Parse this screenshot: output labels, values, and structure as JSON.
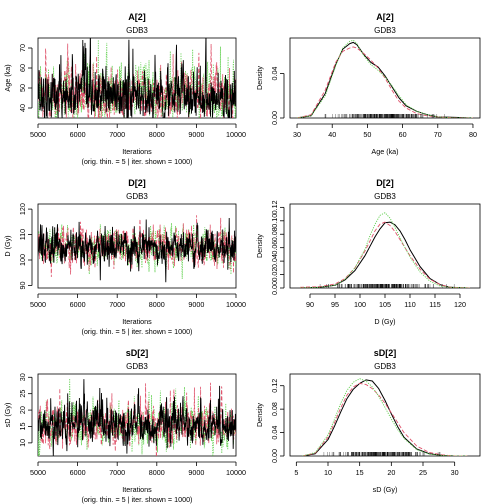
{
  "chart_data": [
    {
      "type": "line",
      "kind": "trace",
      "title": "A[2]",
      "subtitle": "GDB3",
      "ylabel": "Age (ka)",
      "xlabel": "Iterations",
      "xlabel2": "(orig. thin. = 5 | iter. shown = 1000)",
      "xlim": [
        5000,
        10000
      ],
      "ylim": [
        35,
        75
      ],
      "xticks": [
        5000,
        6000,
        7000,
        8000,
        9000,
        10000
      ],
      "yticks": [
        40,
        50,
        60,
        70
      ],
      "trace_params": {
        "mean": 46,
        "sd": 6,
        "skew": 0.6
      },
      "series_colors": [
        "#000000",
        "#df536b",
        "#61d04f"
      ]
    },
    {
      "type": "line",
      "kind": "density",
      "title": "A[2]",
      "subtitle": "GDB3",
      "ylabel": "Density",
      "xlabel": "Age (ka)",
      "xlim": [
        28,
        82
      ],
      "ylim": [
        0,
        0.072
      ],
      "xticks": [
        30,
        40,
        50,
        60,
        70,
        80
      ],
      "yticks": [
        0.0,
        0.04
      ],
      "ytick_labels": [
        "0.00",
        "0.04"
      ],
      "rug_range": [
        35,
        75
      ],
      "series": [
        {
          "x": [
            30,
            34,
            38,
            41,
            43,
            45,
            46,
            47,
            49,
            51,
            53,
            55,
            57,
            59,
            61,
            64,
            67,
            70,
            75,
            80
          ],
          "y": [
            0,
            0.002,
            0.022,
            0.048,
            0.062,
            0.067,
            0.068,
            0.066,
            0.057,
            0.05,
            0.046,
            0.038,
            0.028,
            0.018,
            0.011,
            0.006,
            0.003,
            0.001,
            0.0005,
            0
          ]
        },
        {
          "x": [
            30,
            34,
            38,
            41,
            43,
            45,
            46,
            47,
            49,
            51,
            53,
            55,
            57,
            59,
            61,
            64,
            67,
            70,
            75,
            80
          ],
          "y": [
            0,
            0.003,
            0.025,
            0.05,
            0.06,
            0.063,
            0.064,
            0.063,
            0.058,
            0.052,
            0.045,
            0.036,
            0.025,
            0.015,
            0.009,
            0.004,
            0.002,
            0.001,
            0,
            0
          ]
        },
        {
          "x": [
            30,
            34,
            38,
            41,
            43,
            45,
            46,
            47,
            49,
            51,
            53,
            55,
            57,
            59,
            61,
            64,
            67,
            70,
            75,
            80
          ],
          "y": [
            0,
            0.002,
            0.02,
            0.047,
            0.063,
            0.069,
            0.07,
            0.067,
            0.056,
            0.048,
            0.043,
            0.037,
            0.029,
            0.02,
            0.012,
            0.006,
            0.003,
            0.001,
            0,
            0
          ]
        }
      ],
      "series_colors": [
        "#000000",
        "#df536b",
        "#61d04f"
      ]
    },
    {
      "type": "line",
      "kind": "trace",
      "title": "D[2]",
      "subtitle": "GDB3",
      "ylabel": "D (Gy)",
      "xlabel": "Iterations",
      "xlabel2": "(orig. thin. = 5 | iter. shown = 1000)",
      "xlim": [
        5000,
        10000
      ],
      "ylim": [
        89,
        122
      ],
      "xticks": [
        5000,
        6000,
        7000,
        8000,
        9000,
        10000
      ],
      "yticks": [
        90,
        100,
        110,
        120
      ],
      "trace_params": {
        "mean": 105,
        "sd": 3.8,
        "skew": 0
      },
      "series_colors": [
        "#000000",
        "#df536b",
        "#61d04f"
      ]
    },
    {
      "type": "line",
      "kind": "density",
      "title": "D[2]",
      "subtitle": "GDB3",
      "ylabel": "Density",
      "xlabel": "D (Gy)",
      "xlim": [
        86,
        124
      ],
      "ylim": [
        0,
        0.125
      ],
      "xticks": [
        90,
        95,
        100,
        105,
        110,
        115,
        120
      ],
      "yticks": [
        0.0,
        0.02,
        0.04,
        0.06,
        0.08,
        0.1,
        0.12
      ],
      "ytick_labels": [
        "0.00",
        "0.02",
        "0.04",
        "0.06",
        "0.08",
        "0.10",
        "0.12"
      ],
      "rug_range": [
        90,
        120
      ],
      "series": [
        {
          "x": [
            88,
            92,
            95,
            97,
            99,
            101,
            102,
            103,
            104,
            105,
            106,
            107,
            108,
            109,
            110,
            112,
            114,
            116,
            118,
            122
          ],
          "y": [
            0,
            0.001,
            0.004,
            0.012,
            0.026,
            0.048,
            0.062,
            0.076,
            0.088,
            0.097,
            0.098,
            0.094,
            0.085,
            0.072,
            0.057,
            0.032,
            0.014,
            0.005,
            0.001,
            0
          ]
        },
        {
          "x": [
            88,
            92,
            95,
            97,
            99,
            101,
            102,
            103,
            104,
            105,
            106,
            107,
            108,
            109,
            110,
            112,
            114,
            116,
            118,
            122
          ],
          "y": [
            0.001,
            0.002,
            0.006,
            0.014,
            0.03,
            0.055,
            0.07,
            0.085,
            0.095,
            0.098,
            0.093,
            0.084,
            0.072,
            0.06,
            0.048,
            0.028,
            0.013,
            0.005,
            0.001,
            0
          ]
        },
        {
          "x": [
            88,
            92,
            95,
            97,
            99,
            101,
            102,
            103,
            104,
            105,
            106,
            107,
            108,
            109,
            110,
            112,
            114,
            116,
            118,
            122
          ],
          "y": [
            0,
            0.001,
            0.004,
            0.013,
            0.03,
            0.058,
            0.078,
            0.095,
            0.108,
            0.112,
            0.104,
            0.09,
            0.075,
            0.06,
            0.046,
            0.024,
            0.01,
            0.003,
            0.001,
            0
          ]
        }
      ],
      "series_colors": [
        "#000000",
        "#df536b",
        "#61d04f"
      ]
    },
    {
      "type": "line",
      "kind": "trace",
      "title": "sD[2]",
      "subtitle": "GDB3",
      "ylabel": "sD (Gy)",
      "xlabel": "Iterations",
      "xlabel2": "(orig. thin. = 5 | iter. shown = 1000)",
      "xlim": [
        5000,
        10000
      ],
      "ylim": [
        6,
        31
      ],
      "xticks": [
        5000,
        6000,
        7000,
        8000,
        9000,
        10000
      ],
      "yticks": [
        10,
        15,
        20,
        25,
        30
      ],
      "trace_params": {
        "mean": 15.5,
        "sd": 3,
        "skew": 0.4
      },
      "series_colors": [
        "#000000",
        "#df536b",
        "#61d04f"
      ]
    },
    {
      "type": "line",
      "kind": "density",
      "title": "sD[2]",
      "subtitle": "GDB3",
      "ylabel": "Density",
      "xlabel": "sD (Gy)",
      "xlim": [
        4,
        34
      ],
      "ylim": [
        0,
        0.14
      ],
      "xticks": [
        5,
        10,
        15,
        20,
        25,
        30
      ],
      "yticks": [
        0.0,
        0.04,
        0.08,
        0.12
      ],
      "ytick_labels": [
        "0.00",
        "0.04",
        "0.08",
        "0.12"
      ],
      "rug_range": [
        8,
        29
      ],
      "series": [
        {
          "x": [
            6,
            8,
            10,
            11,
            12,
            13,
            14,
            15,
            16,
            17,
            18,
            19,
            20,
            21,
            22,
            24,
            26,
            28,
            30,
            32
          ],
          "y": [
            0,
            0.004,
            0.028,
            0.05,
            0.075,
            0.098,
            0.114,
            0.124,
            0.13,
            0.128,
            0.115,
            0.095,
            0.072,
            0.05,
            0.032,
            0.012,
            0.004,
            0.001,
            0,
            0
          ]
        },
        {
          "x": [
            6,
            8,
            10,
            11,
            12,
            13,
            14,
            15,
            16,
            17,
            18,
            19,
            20,
            21,
            22,
            24,
            26,
            28,
            30,
            32
          ],
          "y": [
            0,
            0.005,
            0.032,
            0.056,
            0.082,
            0.104,
            0.118,
            0.124,
            0.122,
            0.115,
            0.104,
            0.09,
            0.074,
            0.057,
            0.04,
            0.017,
            0.006,
            0.002,
            0,
            0
          ]
        },
        {
          "x": [
            6,
            8,
            10,
            11,
            12,
            13,
            14,
            15,
            16,
            17,
            18,
            19,
            20,
            21,
            22,
            24,
            26,
            28,
            30,
            32
          ],
          "y": [
            0,
            0.006,
            0.036,
            0.062,
            0.09,
            0.112,
            0.126,
            0.132,
            0.128,
            0.118,
            0.102,
            0.083,
            0.063,
            0.045,
            0.03,
            0.011,
            0.003,
            0.001,
            0,
            0
          ]
        }
      ],
      "series_colors": [
        "#000000",
        "#df536b",
        "#61d04f"
      ]
    }
  ]
}
